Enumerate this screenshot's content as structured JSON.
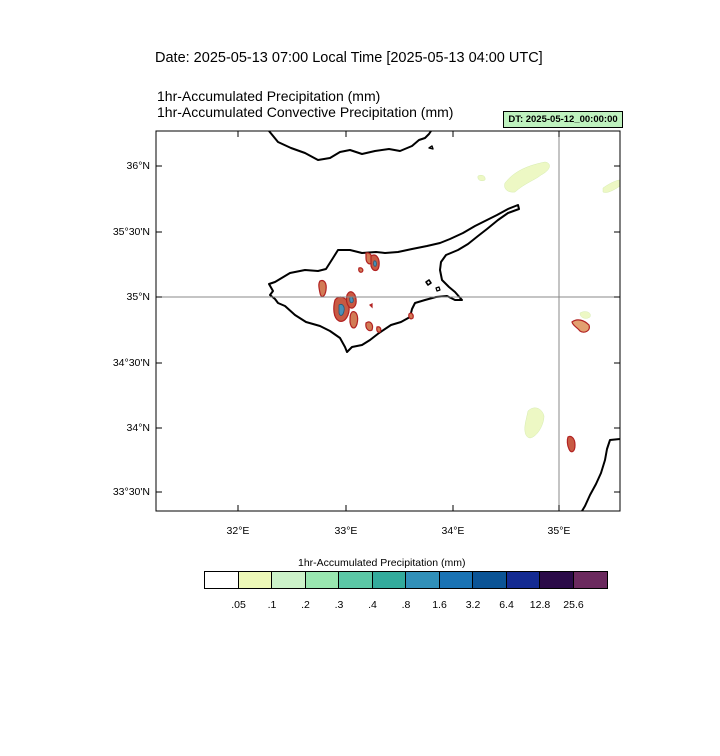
{
  "header": {
    "date_line": "Date: 2025-05-13  07:00 Local Time [2025-05-13  04:00 UTC]",
    "title_line_1": "1hr-Accumulated Precipitation   (mm)",
    "title_line_2": "1hr-Accumulated Convective Precipitation   (mm)",
    "dt_badge": "DT: 2025-05-12_00:00:00"
  },
  "map": {
    "lat_labels": [
      "36°N",
      "35°30'N",
      "35°N",
      "34°30'N",
      "34°N",
      "33°30'N"
    ],
    "lon_labels": [
      "32°E",
      "33°E",
      "34°E",
      "35°E"
    ],
    "reference_lines": {
      "latitude": "35°N",
      "longitude": "35°E"
    },
    "coastline_color": "#000000",
    "precip_light_color": "#edf8c4",
    "convective_outline_color": "#b22222",
    "convective_fill_color": "#b5613a",
    "convective_core_color": "#4a90b8"
  },
  "colorbar": {
    "title": "1hr-Accumulated Precipitation  (mm)",
    "colors": [
      "#ffffff",
      "#edf8b8",
      "#ccf2c9",
      "#99e6b0",
      "#5cc7a6",
      "#33ab9c",
      "#3190b9",
      "#1a73b4",
      "#0b5496",
      "#142b92",
      "#2b0b48",
      "#6b2a5e"
    ],
    "labels": [
      ".05",
      ".1",
      ".2",
      ".3",
      ".4",
      ".8",
      "1.6",
      "3.2",
      "6.4",
      "12.8",
      "25.6"
    ]
  }
}
